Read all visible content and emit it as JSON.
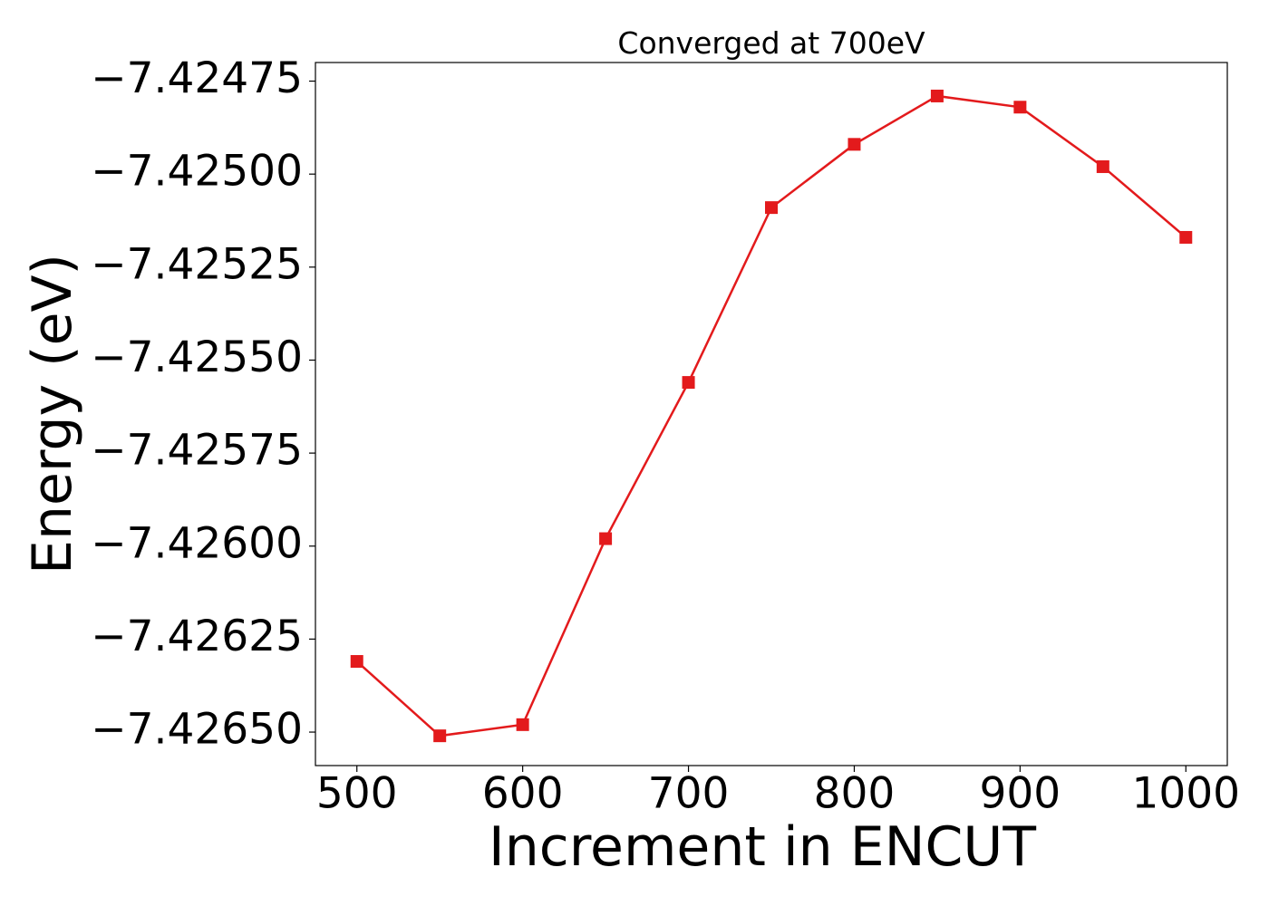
{
  "chart_data": {
    "type": "line",
    "title": "Converged at 700eV",
    "x_label": "Increment in ENCUT",
    "y_label": "Energy (eV)",
    "x": [
      500,
      550,
      600,
      650,
      700,
      750,
      800,
      850,
      900,
      950,
      1000
    ],
    "series": [
      {
        "name": "Energy",
        "color": "#e31a1c",
        "values": [
          -7.42631,
          -7.42651,
          -7.42648,
          -7.42598,
          -7.42556,
          -7.42509,
          -7.42492,
          -7.42479,
          -7.42482,
          -7.42498,
          -7.42517
        ]
      }
    ],
    "xlim": [
      475,
      1025
    ],
    "xticks": [
      500,
      600,
      700,
      800,
      900,
      1000
    ],
    "ylim": [
      -7.42659,
      -7.4247
    ],
    "yticks": [
      {
        "value": -7.4265,
        "label": "−7.42650"
      },
      {
        "value": -7.42625,
        "label": "−7.42625"
      },
      {
        "value": -7.426,
        "label": "−7.42600"
      },
      {
        "value": -7.42575,
        "label": "−7.42575"
      },
      {
        "value": -7.4255,
        "label": "−7.42550"
      },
      {
        "value": -7.42525,
        "label": "−7.42525"
      },
      {
        "value": -7.425,
        "label": "−7.42500"
      },
      {
        "value": -7.42475,
        "label": "−7.42475"
      }
    ],
    "grid": false
  }
}
